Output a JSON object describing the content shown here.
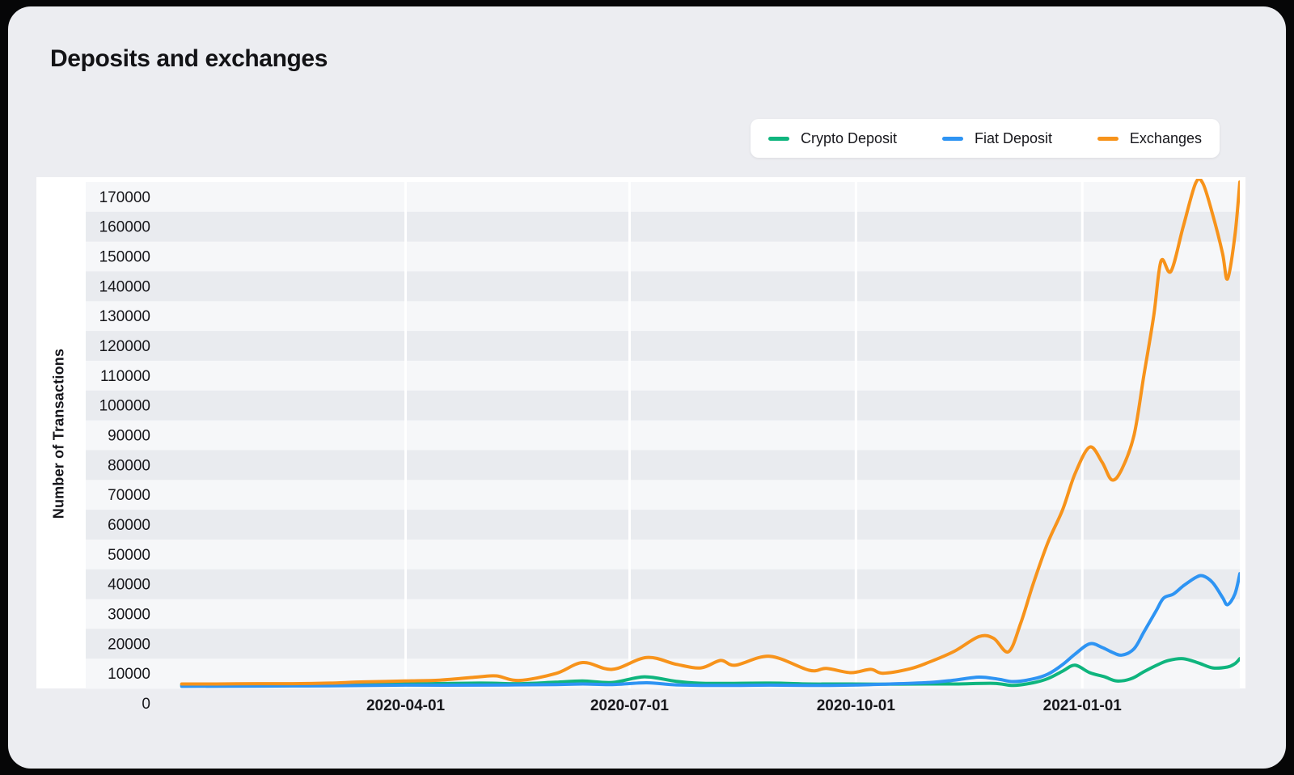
{
  "page": {
    "title": "Deposits and exchanges"
  },
  "legend": {
    "position": "top-right",
    "items": [
      {
        "label": "Crypto Deposit",
        "color": "#0FB57E"
      },
      {
        "label": "Fiat Deposit",
        "color": "#2E94F3"
      },
      {
        "label": "Exchanges",
        "color": "#F7931B"
      }
    ]
  },
  "colors": {
    "page_background": "#ECEDF1",
    "panel_background": "#FFFFFF",
    "stripe_light": "#F6F7F9",
    "stripe_dark": "#E9EBEF",
    "gridline": "#FFFFFF",
    "text": "#17171B"
  },
  "chart_data": {
    "type": "line",
    "title": "Deposits and exchanges",
    "xlabel": "",
    "ylabel": "Number of Transactions",
    "ylim": [
      0,
      170000
    ],
    "y_tick_step": 10000,
    "x_tick_labels": [
      "2020-04-01",
      "2020-07-01",
      "2020-10-01",
      "2021-01-01"
    ],
    "x_domain": [
      "2019-11-23",
      "2021-03-06"
    ],
    "grid": "vertical white quarter gridlines; horizontal zebra stripe bands every 10000",
    "legend_position": "top-right",
    "line_shape": "spline",
    "series": [
      {
        "name": "Crypto Deposit",
        "color": "#0FB57E",
        "points": [
          [
            "2020-01-01",
            1100
          ],
          [
            "2020-02-01",
            1200
          ],
          [
            "2020-03-01",
            1300
          ],
          [
            "2020-04-01",
            1500
          ],
          [
            "2020-05-01",
            1800
          ],
          [
            "2020-05-17",
            1600
          ],
          [
            "2020-06-01",
            2100
          ],
          [
            "2020-06-12",
            2500
          ],
          [
            "2020-06-24",
            2000
          ],
          [
            "2020-07-07",
            3900
          ],
          [
            "2020-07-20",
            2400
          ],
          [
            "2020-08-01",
            1700
          ],
          [
            "2020-08-27",
            1800
          ],
          [
            "2020-09-12",
            1500
          ],
          [
            "2020-09-29",
            1500
          ],
          [
            "2020-10-12",
            1400
          ],
          [
            "2020-10-31",
            1500
          ],
          [
            "2020-11-10",
            1500
          ],
          [
            "2020-11-26",
            1700
          ],
          [
            "2020-12-04",
            1000
          ],
          [
            "2020-12-12",
            1900
          ],
          [
            "2020-12-18",
            3300
          ],
          [
            "2020-12-24",
            5800
          ],
          [
            "2020-12-29",
            7800
          ],
          [
            "2021-01-04",
            5300
          ],
          [
            "2021-01-10",
            3900
          ],
          [
            "2021-01-15",
            2500
          ],
          [
            "2021-01-21",
            3300
          ],
          [
            "2021-01-26",
            5600
          ],
          [
            "2021-02-01",
            8100
          ],
          [
            "2021-02-05",
            9400
          ],
          [
            "2021-02-11",
            10000
          ],
          [
            "2021-02-17",
            8600
          ],
          [
            "2021-02-23",
            6900
          ],
          [
            "2021-03-01",
            7200
          ],
          [
            "2021-03-04",
            8300
          ],
          [
            "2021-03-06",
            10000
          ]
        ]
      },
      {
        "name": "Fiat Deposit",
        "color": "#2E94F3",
        "points": [
          [
            "2020-01-01",
            700
          ],
          [
            "2020-02-01",
            800
          ],
          [
            "2020-03-01",
            900
          ],
          [
            "2020-04-01",
            1100
          ],
          [
            "2020-05-01",
            1100
          ],
          [
            "2020-06-01",
            1300
          ],
          [
            "2020-06-12",
            1500
          ],
          [
            "2020-06-24",
            1300
          ],
          [
            "2020-07-08",
            1900
          ],
          [
            "2020-07-20",
            1200
          ],
          [
            "2020-08-07",
            1000
          ],
          [
            "2020-08-27",
            1100
          ],
          [
            "2020-09-12",
            1000
          ],
          [
            "2020-09-29",
            1100
          ],
          [
            "2020-10-12",
            1400
          ],
          [
            "2020-10-31",
            2000
          ],
          [
            "2020-11-10",
            2800
          ],
          [
            "2020-11-20",
            3800
          ],
          [
            "2020-11-28",
            3100
          ],
          [
            "2020-12-04",
            2300
          ],
          [
            "2020-12-12",
            3200
          ],
          [
            "2020-12-18",
            4800
          ],
          [
            "2020-12-24",
            8000
          ],
          [
            "2020-12-29",
            11500
          ],
          [
            "2021-01-04",
            15000
          ],
          [
            "2021-01-09",
            13800
          ],
          [
            "2021-01-13",
            12200
          ],
          [
            "2021-01-17",
            11200
          ],
          [
            "2021-01-22",
            13300
          ],
          [
            "2021-01-26",
            18900
          ],
          [
            "2021-01-31",
            26100
          ],
          [
            "2021-02-03",
            30300
          ],
          [
            "2021-02-07",
            31700
          ],
          [
            "2021-02-11",
            34400
          ],
          [
            "2021-02-16",
            37200
          ],
          [
            "2021-02-19",
            37800
          ],
          [
            "2021-02-23",
            35500
          ],
          [
            "2021-02-27",
            30500
          ],
          [
            "2021-03-01",
            28100
          ],
          [
            "2021-03-04",
            31700
          ],
          [
            "2021-03-06",
            38500
          ]
        ]
      },
      {
        "name": "Exchanges",
        "color": "#F7931B",
        "points": [
          [
            "2020-01-01",
            1500
          ],
          [
            "2020-01-15",
            1500
          ],
          [
            "2020-02-01",
            1600
          ],
          [
            "2020-02-15",
            1600
          ],
          [
            "2020-03-01",
            1800
          ],
          [
            "2020-03-15",
            2200
          ],
          [
            "2020-04-01",
            2500
          ],
          [
            "2020-04-15",
            2800
          ],
          [
            "2020-05-01",
            3900
          ],
          [
            "2020-05-08",
            4200
          ],
          [
            "2020-05-17",
            2700
          ],
          [
            "2020-06-01",
            5000
          ],
          [
            "2020-06-12",
            8700
          ],
          [
            "2020-06-24",
            6400
          ],
          [
            "2020-07-08",
            10400
          ],
          [
            "2020-07-20",
            8100
          ],
          [
            "2020-07-30",
            6900
          ],
          [
            "2020-08-07",
            9400
          ],
          [
            "2020-08-13",
            7800
          ],
          [
            "2020-08-27",
            10800
          ],
          [
            "2020-09-12",
            6100
          ],
          [
            "2020-09-19",
            6700
          ],
          [
            "2020-09-29",
            5300
          ],
          [
            "2020-10-07",
            6400
          ],
          [
            "2020-10-12",
            5100
          ],
          [
            "2020-10-23",
            6600
          ],
          [
            "2020-10-31",
            8900
          ],
          [
            "2020-11-10",
            12500
          ],
          [
            "2020-11-20",
            17400
          ],
          [
            "2020-11-26",
            16800
          ],
          [
            "2020-12-02",
            12300
          ],
          [
            "2020-12-07",
            22000
          ],
          [
            "2020-12-12",
            35000
          ],
          [
            "2020-12-18",
            49000
          ],
          [
            "2020-12-24",
            60000
          ],
          [
            "2020-12-29",
            72000
          ],
          [
            "2021-01-04",
            81000
          ],
          [
            "2021-01-09",
            76000
          ],
          [
            "2021-01-13",
            70000
          ],
          [
            "2021-01-17",
            73500
          ],
          [
            "2021-01-22",
            85000
          ],
          [
            "2021-01-26",
            105000
          ],
          [
            "2021-01-30",
            125000
          ],
          [
            "2021-02-02",
            143500
          ],
          [
            "2021-02-06",
            140000
          ],
          [
            "2021-02-11",
            155000
          ],
          [
            "2021-02-16",
            169500
          ],
          [
            "2021-02-19",
            169500
          ],
          [
            "2021-02-23",
            159000
          ],
          [
            "2021-02-27",
            146000
          ],
          [
            "2021-03-01",
            137500
          ],
          [
            "2021-03-04",
            152000
          ],
          [
            "2021-03-06",
            170000
          ]
        ]
      }
    ]
  }
}
